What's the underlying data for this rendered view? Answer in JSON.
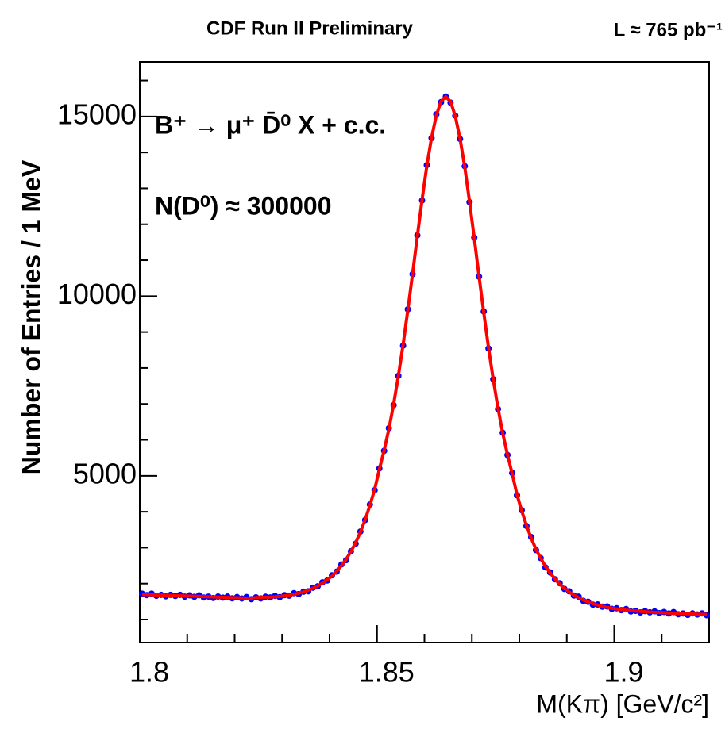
{
  "chart_data": {
    "type": "scatter",
    "title": "CDF Run II Preliminary",
    "luminosity": "L ≈ 765 pb⁻¹",
    "annotations": [
      "B⁺ → μ⁺ D̄⁰ X + c.c.",
      "N(D⁰) ≈ 300000"
    ],
    "xlabel": "M(Kπ) [GeV/c²]",
    "ylabel": "Number of Entries /   1 MeV",
    "xlim": [
      1.8,
      1.92
    ],
    "ylim": [
      360,
      16520
    ],
    "xticks": [
      1.8,
      1.85,
      1.9
    ],
    "yticks": [
      5000,
      10000,
      15000
    ],
    "xminorticks": [
      1.81,
      1.82,
      1.83,
      1.84,
      1.86,
      1.87,
      1.88,
      1.89,
      1.91
    ],
    "yminorticks": [
      1000,
      2000,
      3000,
      4000,
      6000,
      7000,
      8000,
      9000,
      11000,
      12000,
      13000,
      14000,
      16000
    ],
    "x": [
      1.8005,
      1.8015,
      1.8025,
      1.8035,
      1.8045,
      1.8055,
      1.8065,
      1.8075,
      1.8085,
      1.8095,
      1.8105,
      1.8115,
      1.8125,
      1.8135,
      1.8145,
      1.8155,
      1.8165,
      1.8175,
      1.8185,
      1.8195,
      1.8205,
      1.8215,
      1.8225,
      1.8235,
      1.8245,
      1.8255,
      1.8265,
      1.8275,
      1.8285,
      1.8295,
      1.8305,
      1.8315,
      1.8325,
      1.8335,
      1.8345,
      1.8355,
      1.8365,
      1.8375,
      1.8385,
      1.8395,
      1.8405,
      1.8415,
      1.8425,
      1.8435,
      1.8445,
      1.8455,
      1.8465,
      1.8475,
      1.8485,
      1.8495,
      1.8505,
      1.8515,
      1.8525,
      1.8535,
      1.8545,
      1.8555,
      1.8565,
      1.8575,
      1.8585,
      1.8595,
      1.8605,
      1.8615,
      1.8625,
      1.8635,
      1.8645,
      1.8655,
      1.8665,
      1.8675,
      1.8685,
      1.8695,
      1.8705,
      1.8715,
      1.8725,
      1.8735,
      1.8745,
      1.8755,
      1.8765,
      1.8775,
      1.8785,
      1.8795,
      1.8805,
      1.8815,
      1.8825,
      1.8835,
      1.8845,
      1.8855,
      1.8865,
      1.8875,
      1.8885,
      1.8895,
      1.8905,
      1.8915,
      1.8925,
      1.8935,
      1.8945,
      1.8955,
      1.8965,
      1.8975,
      1.8985,
      1.8995,
      1.9005,
      1.9015,
      1.9025,
      1.9035,
      1.9045,
      1.9055,
      1.9065,
      1.9075,
      1.9085,
      1.9095,
      1.9105,
      1.9115,
      1.9125,
      1.9135,
      1.9145,
      1.9155,
      1.9165,
      1.9175,
      1.9185,
      1.9195
    ],
    "series": [
      {
        "kind": "points",
        "color": "#0000ff",
        "values": [
          1720,
          1680,
          1721,
          1661,
          1686,
          1647,
          1687,
          1657,
          1687,
          1638,
          1673,
          1633,
          1674,
          1614,
          1639,
          1600,
          1640,
          1610,
          1640,
          1591,
          1626,
          1586,
          1627,
          1567,
          1619,
          1587,
          1635,
          1615,
          1658,
          1624,
          1679,
          1664,
          1735,
          1710,
          1775,
          1786,
          1886,
          1926,
          2036,
          2087,
          2232,
          2332,
          2533,
          2653,
          2898,
          3109,
          3449,
          3769,
          4199,
          4600,
          5205,
          5695,
          6326,
          6966,
          7781,
          8622,
          9632,
          10612,
          11692,
          12663,
          13648,
          14398,
          15059,
          15399,
          15554,
          15385,
          15025,
          14375,
          13615,
          12616,
          11631,
          10541,
          9572,
          8542,
          7687,
          6858,
          6198,
          5578,
          5078,
          4459,
          4044,
          3604,
          3295,
          2935,
          2710,
          2451,
          2311,
          2121,
          2011,
          1852,
          1787,
          1667,
          1638,
          1518,
          1493,
          1414,
          1419,
          1359,
          1364,
          1295,
          1315,
          1262,
          1293,
          1225,
          1243,
          1199,
          1234,
          1201,
          1228,
          1177,
          1210,
          1168,
          1208,
          1147,
          1169,
          1130,
          1170,
          1140,
          1171,
          1121
        ]
      },
      {
        "kind": "line",
        "color": "#ff0000",
        "values": [
          1700,
          1695,
          1691,
          1686,
          1681,
          1677,
          1672,
          1667,
          1662,
          1658,
          1653,
          1648,
          1644,
          1639,
          1634,
          1630,
          1625,
          1620,
          1615,
          1611,
          1606,
          1601,
          1597,
          1592,
          1614,
          1617,
          1620,
          1625,
          1633,
          1644,
          1659,
          1679,
          1705,
          1735,
          1770,
          1816,
          1871,
          1936,
          2011,
          2107,
          2212,
          2347,
          2503,
          2678,
          2893,
          3139,
          3434,
          3779,
          4174,
          4620,
          5185,
          5710,
          6296,
          6991,
          7776,
          8652,
          9617,
          10622,
          11667,
          12683,
          13628,
          14413,
          15029,
          15424,
          15549,
          15415,
          15010,
          14385,
          13590,
          12636,
          11611,
          10556,
          9542,
          8567,
          7682,
          6888,
          6183,
          5588,
          5053,
          4479,
          4024,
          3619,
          3265,
          2960,
          2705,
          2481,
          2296,
          2131,
          1986,
          1872,
          1767,
          1682,
          1608,
          1543,
          1488,
          1444,
          1404,
          1369,
          1339,
          1315,
          1295,
          1277,
          1263,
          1250,
          1238,
          1229,
          1219,
          1211,
          1203,
          1197,
          1190,
          1183,
          1178,
          1172,
          1164,
          1160,
          1155,
          1150,
          1146,
          1141
        ]
      }
    ]
  }
}
